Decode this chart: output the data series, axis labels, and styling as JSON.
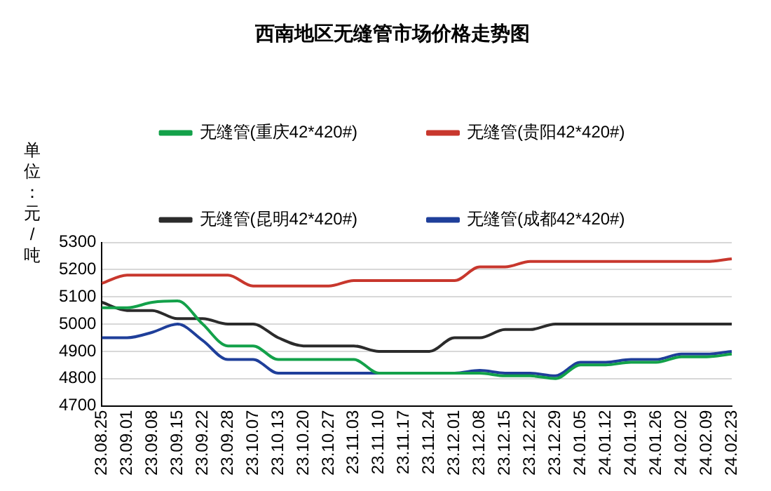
{
  "chart_data": {
    "type": "line",
    "title": "西南地区无缝管市场价格走势图",
    "ylabel": "单位：元/吨",
    "categories": [
      "23.08.25",
      "23.09.01",
      "23.09.08",
      "23.09.15",
      "23.09.22",
      "23.09.28",
      "23.10.07",
      "23.10.13",
      "23.10.20",
      "23.10.27",
      "23.11.03",
      "23.11.10",
      "23.11.17",
      "23.11.24",
      "23.12.01",
      "23.12.08",
      "23.12.15",
      "23.12.22",
      "23.12.29",
      "24.01.05",
      "24.01.12",
      "24.01.19",
      "24.01.26",
      "24.02.02",
      "24.02.09",
      "24.02.23"
    ],
    "series": [
      {
        "name": "无缝管(重庆42*420#)",
        "color": "#13a14a",
        "values": [
          5060,
          5060,
          5080,
          5085,
          5000,
          4920,
          4920,
          4870,
          4870,
          4870,
          4870,
          4820,
          4820,
          4820,
          4820,
          4820,
          4810,
          4810,
          4800,
          4850,
          4850,
          4860,
          4860,
          4880,
          4880,
          4890
        ]
      },
      {
        "name": "无缝管(贵阳42*420#)",
        "color": "#c8372d",
        "values": [
          5150,
          5180,
          5180,
          5180,
          5180,
          5180,
          5140,
          5140,
          5140,
          5140,
          5160,
          5160,
          5160,
          5160,
          5160,
          5210,
          5210,
          5230,
          5230,
          5230,
          5230,
          5230,
          5230,
          5230,
          5230,
          5240
        ]
      },
      {
        "name": "无缝管(昆明42*420#)",
        "color": "#2b2b2b",
        "values": [
          5080,
          5050,
          5050,
          5020,
          5020,
          5000,
          5000,
          4950,
          4920,
          4920,
          4920,
          4900,
          4900,
          4900,
          4950,
          4950,
          4980,
          4980,
          5000,
          5000,
          5000,
          5000,
          5000,
          5000,
          5000,
          5000
        ]
      },
      {
        "name": "无缝管(成都42*420#)",
        "color": "#1f3f9a",
        "values": [
          4950,
          4950,
          4970,
          5000,
          4940,
          4870,
          4870,
          4820,
          4820,
          4820,
          4820,
          4820,
          4820,
          4820,
          4820,
          4830,
          4820,
          4820,
          4810,
          4860,
          4860,
          4870,
          4870,
          4890,
          4890,
          4900
        ]
      }
    ],
    "ylim": [
      4700,
      5300
    ],
    "yticks": [
      4700,
      4800,
      4900,
      5000,
      5100,
      5200,
      5300
    ],
    "grid": "y",
    "legend": "top",
    "marker": "none",
    "line_style": "solid"
  }
}
